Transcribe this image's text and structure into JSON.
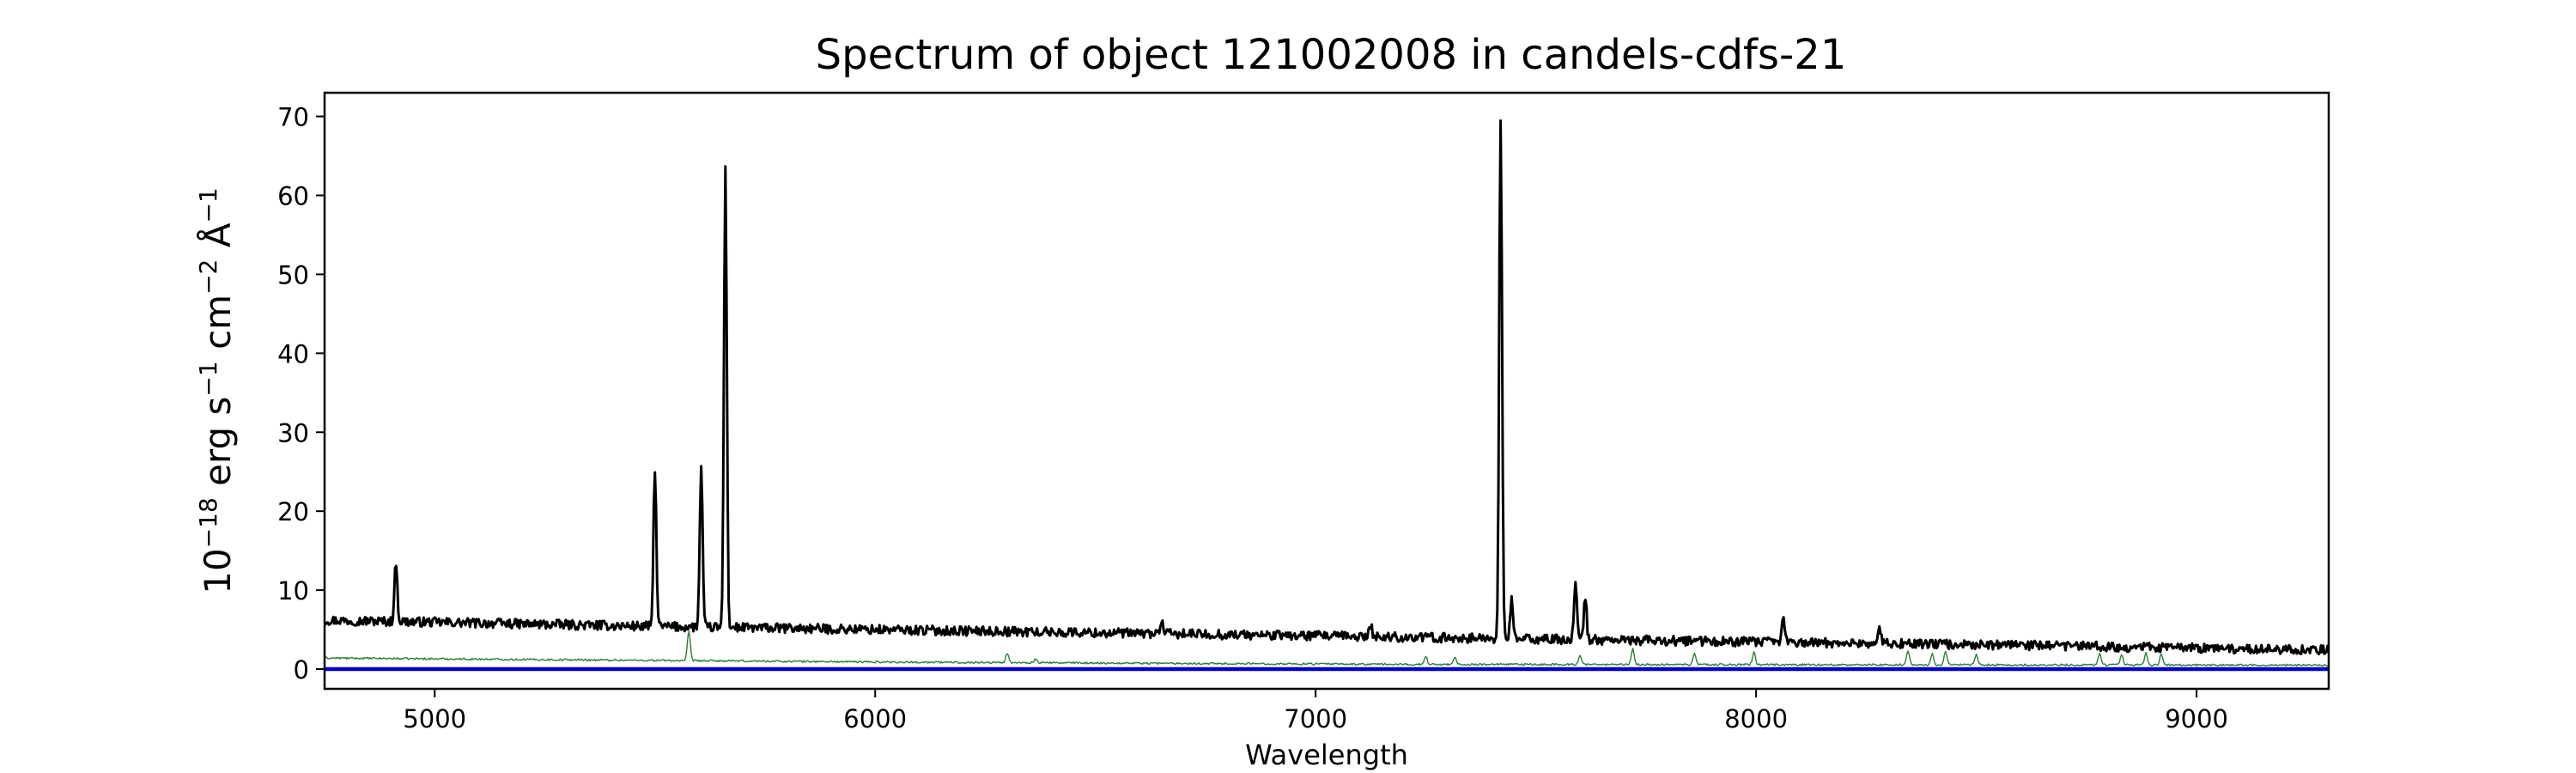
{
  "chart_data": {
    "type": "line",
    "title": "Spectrum of object 121002008 in candels-cdfs-21",
    "xlabel": "Wavelength",
    "ylabel": {
      "base": "10",
      "base_exp": "−18",
      "erg": " erg s",
      "s_exp": "−1",
      "cm": " cm",
      "cm_exp": "−2",
      "ang": " Å",
      "ang_exp": "−1"
    },
    "xlim": [
      4750,
      9300
    ],
    "ylim": [
      -2.5,
      73
    ],
    "x_ticks": [
      5000,
      6000,
      7000,
      8000,
      9000
    ],
    "y_ticks": [
      0,
      10,
      20,
      30,
      40,
      50,
      60,
      70
    ],
    "grid": false,
    "legend": "none",
    "series": [
      {
        "role": "flux",
        "color": "#000000",
        "continuum": [
          [
            4750,
            6.2
          ],
          [
            5500,
            5.4
          ],
          [
            6500,
            4.6
          ],
          [
            7500,
            3.8
          ],
          [
            8500,
            3.1
          ],
          [
            9300,
            2.4
          ]
        ],
        "noise": 0.6,
        "emission_lines": [
          {
            "x": 4912,
            "peak": 13.6
          },
          {
            "x": 5500,
            "peak": 25.5
          },
          {
            "x": 5605,
            "peak": 25.4
          },
          {
            "x": 5660,
            "peak": 63.2
          },
          {
            "x": 6650,
            "peak": 6.2
          },
          {
            "x": 7125,
            "peak": 5.5
          },
          {
            "x": 7420,
            "peak": 69.8
          },
          {
            "x": 7445,
            "peak": 8.8
          },
          {
            "x": 7590,
            "peak": 10.7
          },
          {
            "x": 7612,
            "peak": 9.2
          },
          {
            "x": 8062,
            "peak": 6.5
          },
          {
            "x": 8280,
            "peak": 5.2
          }
        ]
      },
      {
        "role": "error",
        "color": "#2e7d32",
        "continuum": [
          [
            4750,
            1.4
          ],
          [
            6000,
            0.9
          ],
          [
            7200,
            0.6
          ],
          [
            9300,
            0.5
          ]
        ],
        "noise": 0.12,
        "emission_lines": [
          {
            "x": 5577,
            "peak": 4.8
          },
          {
            "x": 6300,
            "peak": 2.0
          },
          {
            "x": 6364,
            "peak": 1.3
          },
          {
            "x": 7250,
            "peak": 1.6
          },
          {
            "x": 7316,
            "peak": 1.6
          },
          {
            "x": 7600,
            "peak": 1.8
          },
          {
            "x": 7720,
            "peak": 2.6
          },
          {
            "x": 7860,
            "peak": 2.0
          },
          {
            "x": 7995,
            "peak": 2.2
          },
          {
            "x": 8345,
            "peak": 2.4
          },
          {
            "x": 8400,
            "peak": 2.0
          },
          {
            "x": 8430,
            "peak": 2.2
          },
          {
            "x": 8500,
            "peak": 1.9
          },
          {
            "x": 8780,
            "peak": 2.0
          },
          {
            "x": 8830,
            "peak": 1.9
          },
          {
            "x": 8885,
            "peak": 2.1
          },
          {
            "x": 8920,
            "peak": 2.0
          }
        ]
      },
      {
        "role": "zero-line",
        "color": "#0000cc",
        "values": [
          [
            4750,
            0
          ],
          [
            9300,
            0
          ]
        ]
      }
    ]
  }
}
